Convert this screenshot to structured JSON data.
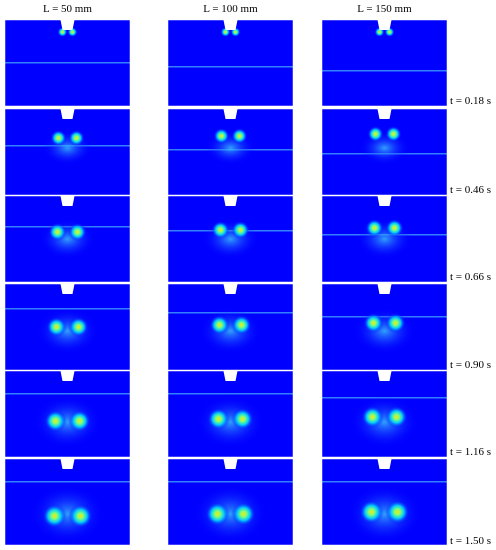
{
  "figure": {
    "columns": [
      "L = 50 mm",
      "L = 100 mm",
      "L = 150 mm"
    ],
    "rows": [
      "t = 0.18 s",
      "t = 0.46 s",
      "t = 0.66 s",
      "t = 0.90 s",
      "t = 1.16 s",
      "t = 1.50 s"
    ]
  }
}
